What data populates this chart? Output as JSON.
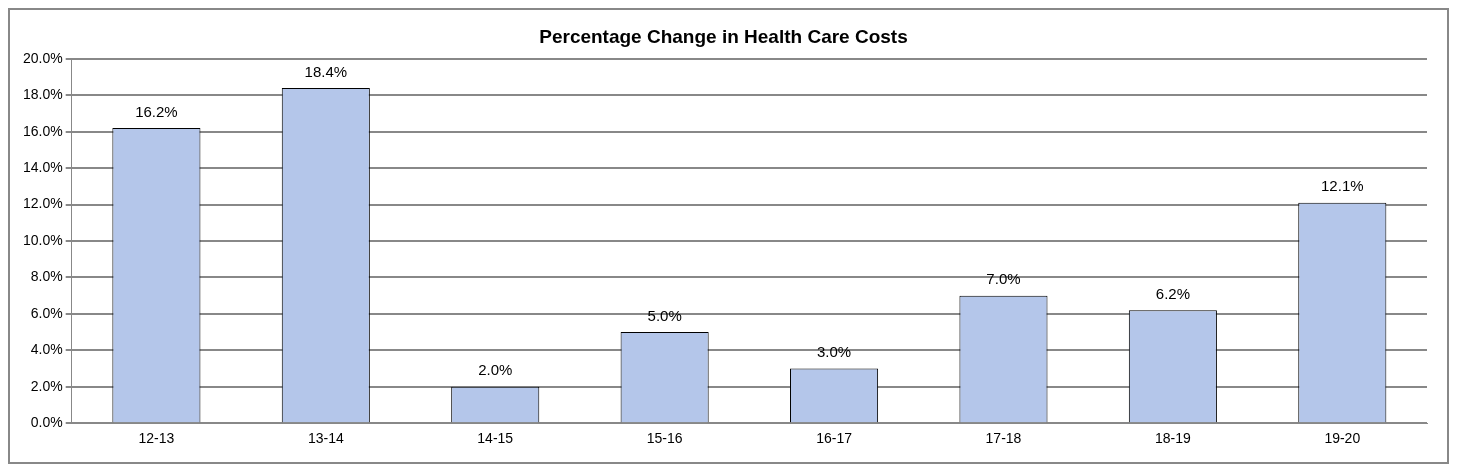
{
  "chart_data": {
    "type": "bar",
    "title": "Percentage Change in Health Care Costs",
    "categories": [
      "12-13",
      "13-14",
      "14-15",
      "15-16",
      "16-17",
      "17-18",
      "18-19",
      "19-20"
    ],
    "values": [
      16.2,
      18.4,
      2.0,
      5.0,
      3.0,
      7.0,
      6.2,
      12.1
    ],
    "value_labels": [
      "16.2%",
      "18.4%",
      "2.0%",
      "5.0%",
      "3.0%",
      "7.0%",
      "6.2%",
      "12.1%"
    ],
    "color": "#b4c6ea",
    "ylim": [
      0,
      20
    ],
    "yticks": [
      {
        "value": 0,
        "label": "0.0%"
      },
      {
        "value": 2,
        "label": "2.0%"
      },
      {
        "value": 4,
        "label": "4.0%"
      },
      {
        "value": 6,
        "label": "6.0%"
      },
      {
        "value": 8,
        "label": "8.0%"
      },
      {
        "value": 10,
        "label": "10.0%"
      },
      {
        "value": 12,
        "label": "12.0%"
      },
      {
        "value": 14,
        "label": "14.0%"
      },
      {
        "value": 16,
        "label": "16.0%"
      },
      {
        "value": 18,
        "label": "18.0%"
      },
      {
        "value": 20,
        "label": "20.0%"
      }
    ],
    "grid": "y",
    "legend": false
  }
}
